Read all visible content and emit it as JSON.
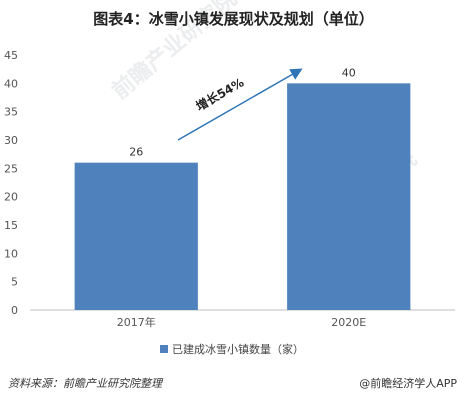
{
  "chart_data": {
    "type": "bar",
    "title": "图表4：冰雪小镇发展现状及规划（单位）",
    "categories": [
      "2017年",
      "2020E"
    ],
    "series": [
      {
        "name": "已建成冰雪小镇数量（家）",
        "values": [
          26,
          40
        ],
        "color": "#4f81bd"
      }
    ],
    "ylim": [
      0,
      45
    ],
    "yticks": [
      0,
      5,
      10,
      15,
      20,
      25,
      30,
      35,
      40,
      45
    ],
    "grid": false,
    "legend_position": "bottom",
    "annotation": "增长54%",
    "annotation_arrow_color": "#2e75b6"
  },
  "footer": {
    "source": "资料来源：前瞻产业研究院整理",
    "credit": "@前瞻经济学人APP"
  },
  "watermark": {
    "brand": "前瞻产业研究院"
  }
}
